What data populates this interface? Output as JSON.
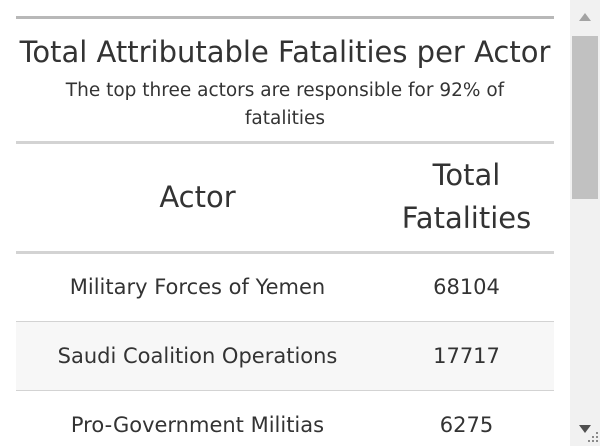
{
  "table": {
    "title": "Total Attributable Fatalities per Actor",
    "subtitle": "The top three actors are responsible for 92% of fatalities",
    "columns": [
      "Actor",
      "Total Fatalities"
    ],
    "rows": [
      {
        "actor": "Military Forces of Yemen",
        "fatalities": "68104"
      },
      {
        "actor": "Saudi Coalition Operations",
        "fatalities": "17717"
      },
      {
        "actor": "Pro-Government Militias",
        "fatalities": "6275"
      }
    ]
  },
  "colors": {
    "text": "#333333",
    "rule": "#b8b8b8",
    "row_border": "#d3d3d3",
    "stripe": "#f7f7f7",
    "scrollbar_track": "#f1f1f1",
    "scrollbar_thumb": "#c1c1c1"
  },
  "icons": {
    "scroll_up": "triangle-up-icon",
    "scroll_down": "triangle-down-icon",
    "resize": "resize-grip-icon"
  }
}
